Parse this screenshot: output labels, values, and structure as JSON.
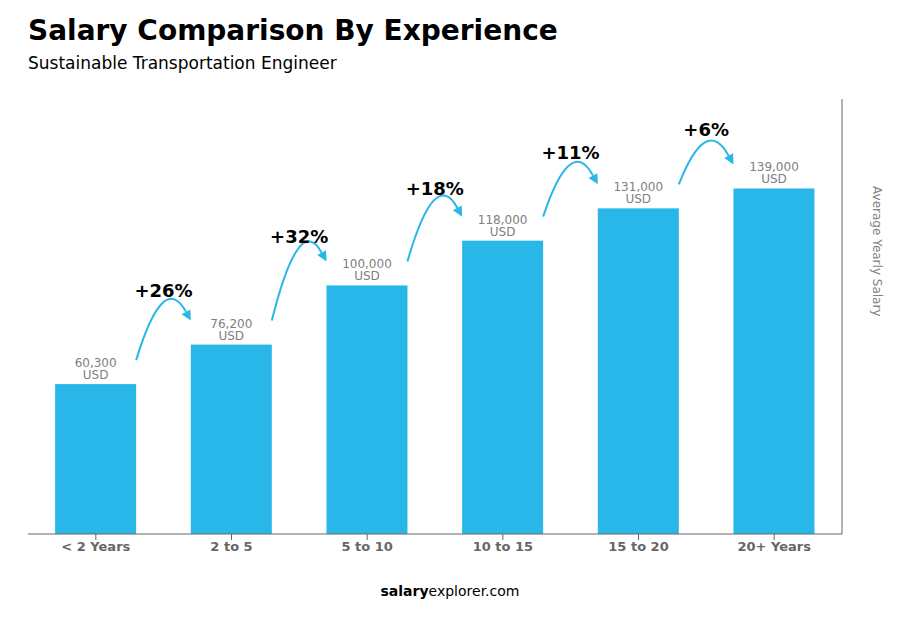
{
  "chart_data": {
    "type": "bar",
    "title": "Salary Comparison By Experience",
    "subtitle": "Sustainable Transportation Engineer",
    "y_label": "Average Yearly Salary",
    "categories": [
      "< 2 Years",
      "2 to 5",
      "5 to 10",
      "10 to 15",
      "15 to 20",
      "20+ Years"
    ],
    "values": [
      60300,
      76200,
      100000,
      118000,
      131000,
      139000
    ],
    "value_labels": [
      "60,300 USD",
      "76,200 USD",
      "100,000 USD",
      "118,000 USD",
      "131,000 USD",
      "139,000 USD"
    ],
    "data_labels": true,
    "color": "#29b6e8",
    "ylim": [
      0,
      175000
    ],
    "tick_labels": "x",
    "grid": false,
    "annotations": [
      "+26%",
      "+32%",
      "+18%",
      "+11%",
      "+6%"
    ],
    "footer": [
      "salary",
      "explorer.com"
    ]
  }
}
